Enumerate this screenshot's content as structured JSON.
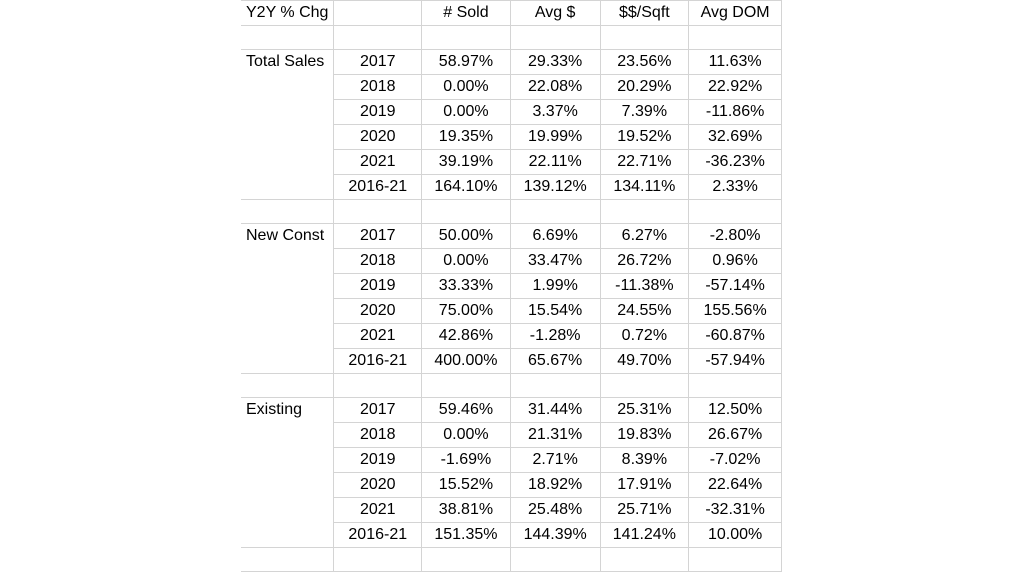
{
  "header": [
    "Y2Y % Chg",
    "",
    "# Sold",
    "Avg $",
    "$$/Sqft",
    "Avg DOM"
  ],
  "sections": [
    {
      "label": "Total Sales",
      "rows": [
        {
          "period": "2017",
          "sold": "58.97%",
          "avg": "29.33%",
          "sqft": "23.56%",
          "dom": "11.63%"
        },
        {
          "period": "2018",
          "sold": "0.00%",
          "avg": "22.08%",
          "sqft": "20.29%",
          "dom": "22.92%"
        },
        {
          "period": "2019",
          "sold": "0.00%",
          "avg": "3.37%",
          "sqft": "7.39%",
          "dom": "-11.86%"
        },
        {
          "period": "2020",
          "sold": "19.35%",
          "avg": "19.99%",
          "sqft": "19.52%",
          "dom": "32.69%"
        },
        {
          "period": "2021",
          "sold": "39.19%",
          "avg": "22.11%",
          "sqft": "22.71%",
          "dom": "-36.23%"
        },
        {
          "period": "2016-21",
          "sold": "164.10%",
          "avg": "139.12%",
          "sqft": "134.11%",
          "dom": "2.33%"
        }
      ]
    },
    {
      "label": "New Const",
      "rows": [
        {
          "period": "2017",
          "sold": "50.00%",
          "avg": "6.69%",
          "sqft": "6.27%",
          "dom": "-2.80%"
        },
        {
          "period": "2018",
          "sold": "0.00%",
          "avg": "33.47%",
          "sqft": "26.72%",
          "dom": "0.96%"
        },
        {
          "period": "2019",
          "sold": "33.33%",
          "avg": "1.99%",
          "sqft": "-11.38%",
          "dom": "-57.14%"
        },
        {
          "period": "2020",
          "sold": "75.00%",
          "avg": "15.54%",
          "sqft": "24.55%",
          "dom": "155.56%"
        },
        {
          "period": "2021",
          "sold": "42.86%",
          "avg": "-1.28%",
          "sqft": "0.72%",
          "dom": "-60.87%"
        },
        {
          "period": "2016-21",
          "sold": "400.00%",
          "avg": "65.67%",
          "sqft": "49.70%",
          "dom": "-57.94%"
        }
      ]
    },
    {
      "label": "Existing",
      "rows": [
        {
          "period": "2017",
          "sold": "59.46%",
          "avg": "31.44%",
          "sqft": "25.31%",
          "dom": "12.50%"
        },
        {
          "period": "2018",
          "sold": "0.00%",
          "avg": "21.31%",
          "sqft": "19.83%",
          "dom": "26.67%"
        },
        {
          "period": "2019",
          "sold": "-1.69%",
          "avg": "2.71%",
          "sqft": "8.39%",
          "dom": "-7.02%"
        },
        {
          "period": "2020",
          "sold": "15.52%",
          "avg": "18.92%",
          "sqft": "17.91%",
          "dom": "22.64%"
        },
        {
          "period": "2021",
          "sold": "38.81%",
          "avg": "25.48%",
          "sqft": "25.71%",
          "dom": "-32.31%"
        },
        {
          "period": "2016-21",
          "sold": "151.35%",
          "avg": "144.39%",
          "sqft": "141.24%",
          "dom": "10.00%"
        }
      ]
    }
  ]
}
